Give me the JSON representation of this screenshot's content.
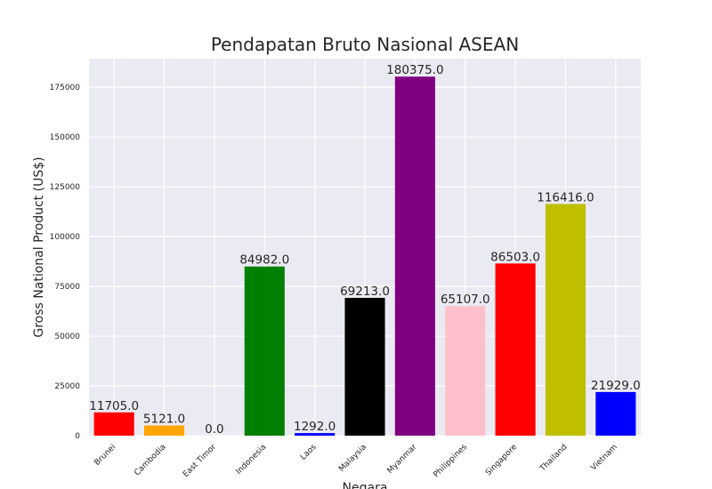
{
  "chart_data": {
    "type": "bar",
    "title": "Pendapatan Bruto Nasional ASEAN",
    "xlabel": "Negara",
    "ylabel": "Gross National Product (US$)",
    "categories": [
      "Brunei",
      "Cambodia",
      "East Timor",
      "Indonesia",
      "Laos",
      "Malaysia",
      "Myanmar",
      "Philippines",
      "Singapore",
      "Thailand",
      "Vietnam"
    ],
    "values": [
      11705.0,
      5121.0,
      0.0,
      84982.0,
      1292.0,
      69213.0,
      180375.0,
      65107.0,
      86503.0,
      116416.0,
      21929.0
    ],
    "data_labels": [
      "11705.0",
      "5121.0",
      "0.0",
      "84982.0",
      "1292.0",
      "69213.0",
      "180375.0",
      "65107.0",
      "86503.0",
      "116416.0",
      "21929.0"
    ],
    "colors": [
      "#ff0000",
      "#ffa500",
      "#ffffff",
      "#008000",
      "#0000ff",
      "#000000",
      "#800080",
      "#ffc0cb",
      "#ff0000",
      "#bfbf00",
      "#0000ff"
    ],
    "yticks": [
      0,
      25000,
      50000,
      75000,
      100000,
      125000,
      150000,
      175000
    ],
    "ylim": [
      0,
      189394
    ],
    "grid": true,
    "plot_background": "#eaeaf2",
    "legend": "none"
  }
}
